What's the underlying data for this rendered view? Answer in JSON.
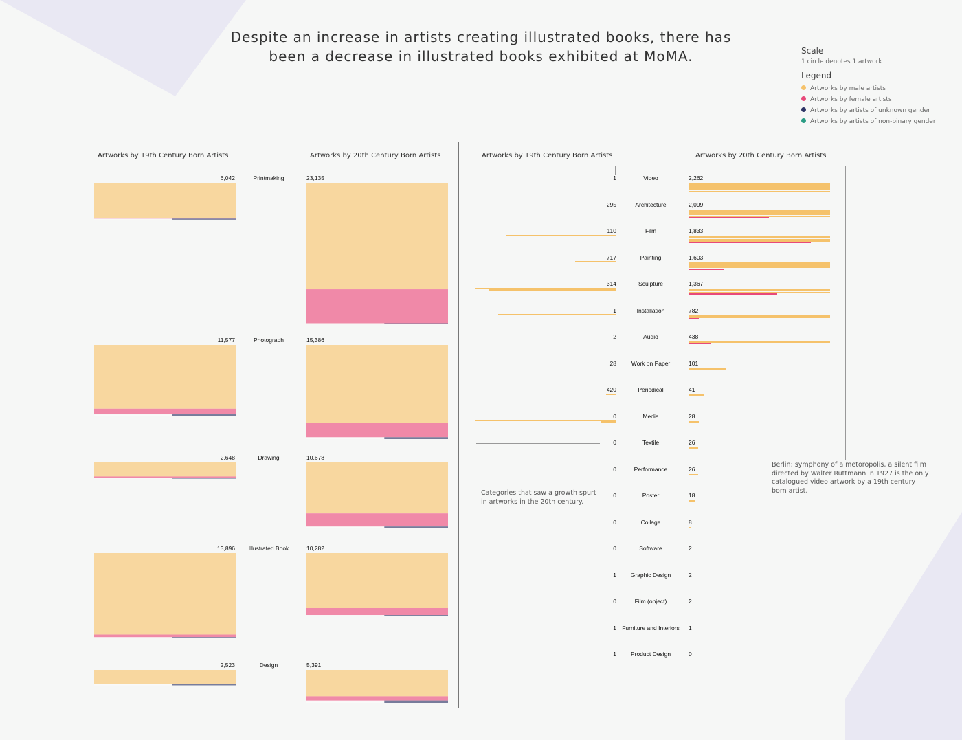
{
  "title_lines": [
    "Despite an increase in artists creating illustrated books, there has",
    "been a decrease in illustrated books exhibited at MoMA."
  ],
  "legend": {
    "scale_heading": "Scale",
    "scale_text": "1 circle denotes 1 artwork",
    "legend_heading": "Legend",
    "items": [
      {
        "label": "Artworks by male artists",
        "color": "#f5c26b"
      },
      {
        "label": "Artworks by female artists",
        "color": "#e8497a"
      },
      {
        "label": "Artworks by artists of unknown gender",
        "color": "#2e3566"
      },
      {
        "label": "Artworks by artists of non-binary gender",
        "color": "#2a9c84"
      }
    ]
  },
  "column_headers": {
    "left_19": "Artworks by 19th Century Born Artists",
    "left_20": "Artworks by 20th Century Born Artists",
    "right_19": "Artworks by 19th Century Born Artists",
    "right_20": "Artworks by 20th Century Born Artists"
  },
  "annotations": {
    "growth": [
      "Categories that saw a growth spurt",
      "in artworks in the 20th century."
    ],
    "berlin": [
      "Berlin: symphony of a metoropolis, a silent film",
      "directed by Walter Ruttmann in 1927 is the only",
      "catalogued video artwork by a 19th century",
      "born artist."
    ]
  },
  "chart_data": {
    "type": "waffle",
    "unit": "1 circle denotes 1 artwork",
    "series": [
      "19th Century Born Artists",
      "20th Century Born Artists"
    ],
    "major_categories": [
      {
        "name": "Printmaking",
        "c19": {
          "label": "6,042",
          "value": 6042,
          "female": 0.02,
          "unknown": 0.01
        },
        "c20": {
          "label": "23,135",
          "value": 23135,
          "female": 0.24,
          "unknown": 0.005
        }
      },
      {
        "name": "Photograph",
        "c19": {
          "label": "11,577",
          "value": 11577,
          "female": 0.08,
          "unknown": 0.02
        },
        "c20": {
          "label": "15,386",
          "value": 15386,
          "female": 0.15,
          "unknown": 0.02
        }
      },
      {
        "name": "Drawing",
        "c19": {
          "label": "2,648",
          "value": 2648,
          "female": 0.07,
          "unknown": 0.01
        },
        "c20": {
          "label": "10,678",
          "value": 10678,
          "female": 0.2,
          "unknown": 0.02
        }
      },
      {
        "name": "Illustrated Book",
        "c19": {
          "label": "13,896",
          "value": 13896,
          "female": 0.03,
          "unknown": 0.01
        },
        "c20": {
          "label": "10,282",
          "value": 10282,
          "female": 0.11,
          "unknown": 0.01
        }
      },
      {
        "name": "Design",
        "c19": {
          "label": "2,523",
          "value": 2523,
          "female": 0.04,
          "unknown": 0.06
        },
        "c20": {
          "label": "5,391",
          "value": 5391,
          "female": 0.13,
          "unknown": 0.07
        }
      }
    ],
    "minor_categories": [
      {
        "name": "Video",
        "c19": {
          "label": "1",
          "value": 1
        },
        "c20": {
          "label": "2,262",
          "value": 2262
        }
      },
      {
        "name": "Architecture",
        "c19": {
          "label": "295",
          "value": 295
        },
        "c20": {
          "label": "2,099",
          "value": 2099
        }
      },
      {
        "name": "Film",
        "c19": {
          "label": "110",
          "value": 110
        },
        "c20": {
          "label": "1,833",
          "value": 1833
        }
      },
      {
        "name": "Painting",
        "c19": {
          "label": "717",
          "value": 717
        },
        "c20": {
          "label": "1,603",
          "value": 1603
        }
      },
      {
        "name": "Sculpture",
        "c19": {
          "label": "314",
          "value": 314
        },
        "c20": {
          "label": "1,367",
          "value": 1367
        }
      },
      {
        "name": "Installation",
        "c19": {
          "label": "1",
          "value": 1
        },
        "c20": {
          "label": "782",
          "value": 782
        }
      },
      {
        "name": "Audio",
        "c19": {
          "label": "2",
          "value": 2
        },
        "c20": {
          "label": "438",
          "value": 438
        }
      },
      {
        "name": "Work on Paper",
        "c19": {
          "label": "28",
          "value": 28
        },
        "c20": {
          "label": "101",
          "value": 101
        }
      },
      {
        "name": "Periodical",
        "c19": {
          "label": "420",
          "value": 420
        },
        "c20": {
          "label": "41",
          "value": 41
        }
      },
      {
        "name": "Media",
        "c19": {
          "label": "0",
          "value": 0
        },
        "c20": {
          "label": "28",
          "value": 28
        }
      },
      {
        "name": "Textile",
        "c19": {
          "label": "0",
          "value": 0
        },
        "c20": {
          "label": "26",
          "value": 26
        }
      },
      {
        "name": "Performance",
        "c19": {
          "label": "0",
          "value": 0
        },
        "c20": {
          "label": "26",
          "value": 26
        }
      },
      {
        "name": "Poster",
        "c19": {
          "label": "0",
          "value": 0
        },
        "c20": {
          "label": "18",
          "value": 18
        }
      },
      {
        "name": "Collage",
        "c19": {
          "label": "0",
          "value": 0
        },
        "c20": {
          "label": "8",
          "value": 8
        }
      },
      {
        "name": "Software",
        "c19": {
          "label": "0",
          "value": 0
        },
        "c20": {
          "label": "2",
          "value": 2
        }
      },
      {
        "name": "Graphic Design",
        "c19": {
          "label": "1",
          "value": 1
        },
        "c20": {
          "label": "2",
          "value": 2
        }
      },
      {
        "name": "Film (object)",
        "c19": {
          "label": "0",
          "value": 0
        },
        "c20": {
          "label": "2",
          "value": 2
        }
      },
      {
        "name": "Furniture and Interiors",
        "c19": {
          "label": "1",
          "value": 1
        },
        "c20": {
          "label": "1",
          "value": 1
        }
      },
      {
        "name": "Product Design",
        "c19": {
          "label": "1",
          "value": 1
        },
        "c20": {
          "label": "0",
          "value": 0
        }
      }
    ]
  }
}
